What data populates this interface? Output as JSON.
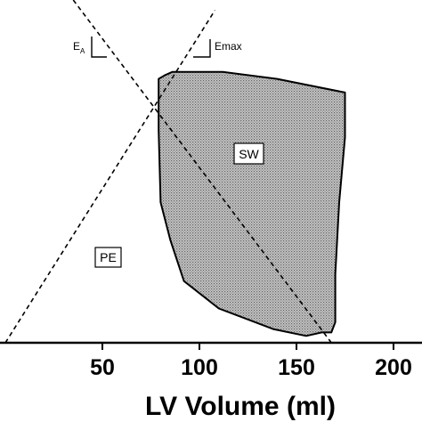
{
  "figure": {
    "region_labels": {
      "stroke_work": "SW",
      "potential_energy": "PE"
    },
    "annotations": {
      "ea_main": "E",
      "ea_sub": "A",
      "emax": "Emax"
    }
  },
  "chart_data": {
    "type": "line",
    "title": "",
    "xlabel": "LV Volume (ml)",
    "ylabel": "",
    "xlim": [
      0,
      208
    ],
    "x_ticks": [
      "50",
      "100",
      "150",
      "200"
    ],
    "grid": false,
    "series": [
      {
        "role": "pressure-volume loop (shaded SW region)",
        "x": [
          79,
          79,
          80,
          85,
          92,
          110,
          138,
          155,
          163,
          168,
          170,
          170,
          172,
          175,
          175,
          140,
          112,
          95,
          86,
          82,
          79
        ],
        "y": [
          0.77,
          0.62,
          0.41,
          0.3,
          0.18,
          0.1,
          0.04,
          0.02,
          0.03,
          0.03,
          0.06,
          0.2,
          0.41,
          0.6,
          0.73,
          0.77,
          0.79,
          0.79,
          0.79,
          0.78,
          0.77
        ]
      },
      {
        "role": "Emax line (end-systolic pressure-volume relation)",
        "x": [
          0,
          108
        ],
        "y": [
          0.0,
          0.97
        ]
      },
      {
        "role": "EA line (arterial elastance)",
        "x": [
          35,
          168
        ],
        "y": [
          1.0,
          0.0
        ]
      }
    ]
  }
}
